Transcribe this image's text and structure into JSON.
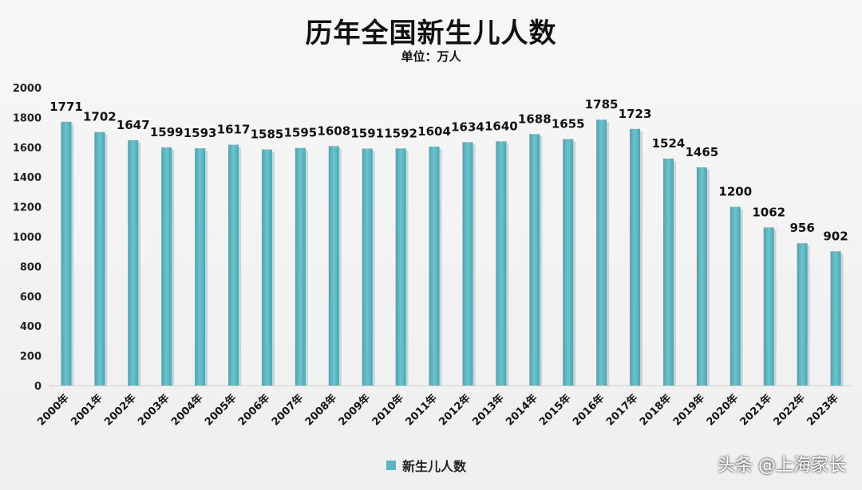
{
  "chart_data": {
    "type": "bar",
    "title": "历年全国新生儿人数",
    "subtitle": "单位：万人",
    "categories": [
      "2000年",
      "2001年",
      "2002年",
      "2003年",
      "2004年",
      "2005年",
      "2006年",
      "2007年",
      "2008年",
      "2009年",
      "2010年",
      "2011年",
      "2012年",
      "2013年",
      "2014年",
      "2015年",
      "2016年",
      "2017年",
      "2018年",
      "2019年",
      "2020年",
      "2021年",
      "2022年",
      "2023年"
    ],
    "series": [
      {
        "name": "新生儿人数",
        "values": [
          1771,
          1702,
          1647,
          1599,
          1593,
          1617,
          1585,
          1595,
          1608,
          1591,
          1592,
          1604,
          1634,
          1640,
          1688,
          1655,
          1785,
          1723,
          1524,
          1465,
          1200,
          1062,
          956,
          902
        ]
      }
    ],
    "ylim": [
      0,
      2000
    ],
    "yticks": [
      "0",
      "200",
      "400",
      "600",
      "800",
      "1000",
      "1200",
      "1400",
      "1600",
      "1800",
      "2000"
    ],
    "grid": false,
    "legend_position": "bottom",
    "bar_color": "#5bb4bf"
  },
  "watermark": "头条 @上海家长"
}
